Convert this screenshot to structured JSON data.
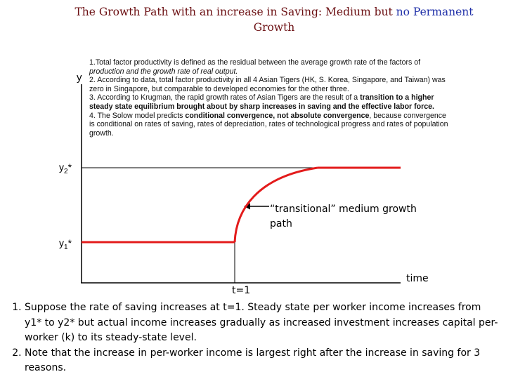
{
  "title": {
    "part1": "The Growth Path with an increase in Saving: Medium but ",
    "part2": "no Permanent",
    "part3": "Growth"
  },
  "notes": {
    "n1a": "1.Total factor productivity is defined as the residual between the average growth rate of the factors of",
    "n1b": "production  and the growth rate of real output.",
    "n2a": "2. According to data, total factor productivity in all 4 Asian Tigers (HK, S. Korea, Singapore, and Taiwan) was",
    "n2b": "zero in Singapore, but comparable to developed economies for the other three.",
    "n3a_plain": "3. According to Krugman, the rapid growth rates of Asian Tigers are the result of a ",
    "n3a_bold": "transition to a higher",
    "n3b_bold": "steady state equilibrium brought about by sharp increases in saving and the effective labor force.",
    "n4a_plain1": "4. The Solow model predicts ",
    "n4a_bold": "conditional convergence, not absolute convergence",
    "n4a_plain2": ", because convergence",
    "n4b": "is conditional on rates of saving, rates of depreciation, rates of technological progress and rates of population",
    "n4c": "growth."
  },
  "axis": {
    "y_label": "y",
    "y2_label_main": "y",
    "y2_label_sub": "2",
    "y2_label_star": "*",
    "y1_label_main": "y",
    "y1_label_sub": "1",
    "y1_label_star": "*",
    "t_label": "t=1",
    "time_label": "time"
  },
  "annotation": {
    "line1": "“transitional” medium growth",
    "line2": "path"
  },
  "bottom_points": [
    "Suppose the rate of saving increases at t=1. Steady state per worker income increases from y1* to y2* but actual income increases gradually as increased investment increases capital per-worker (k) to its steady-state level.",
    "Note that the increase in per-worker income is largest right after the increase in saving for 3 reasons."
  ],
  "colors": {
    "title": "#6b0f12",
    "title_accent": "#1f2fa8",
    "path": "#e31b1b"
  }
}
